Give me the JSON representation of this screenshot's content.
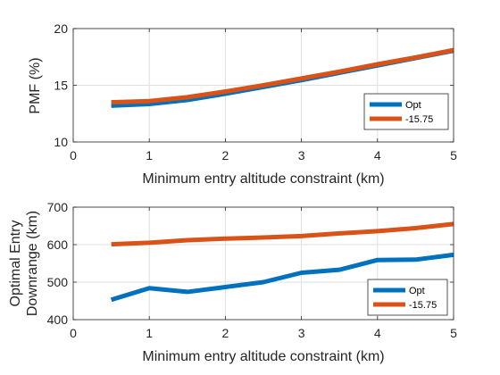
{
  "chart_data": [
    {
      "type": "line",
      "xlabel": "Minimum entry altitude constraint (km)",
      "ylabel": [
        "PMF (%)"
      ],
      "xlim": [
        0,
        5
      ],
      "ylim": [
        10,
        20
      ],
      "xticks": [
        "0",
        "1",
        "2",
        "3",
        "4",
        "5"
      ],
      "yticks": [
        "10",
        "15",
        "20"
      ],
      "grid": true,
      "legend_position": "lower-right",
      "x": [
        0.5,
        1,
        1.5,
        2,
        2.5,
        3,
        3.5,
        4,
        4.5,
        5
      ],
      "series": [
        {
          "name": "Opt",
          "color": "#0072BD",
          "values": [
            13.2,
            13.35,
            13.7,
            14.25,
            14.85,
            15.45,
            16.1,
            16.75,
            17.4,
            18.05
          ]
        },
        {
          "name": "-15.75",
          "color": "#D95319",
          "values": [
            13.5,
            13.6,
            13.95,
            14.45,
            15.0,
            15.6,
            16.2,
            16.85,
            17.45,
            18.1
          ]
        }
      ]
    },
    {
      "type": "line",
      "xlabel": "Minimum entry altitude constraint (km)",
      "ylabel": [
        "Optimal Entry",
        "Downrange (km)"
      ],
      "xlim": [
        0,
        5
      ],
      "ylim": [
        400,
        700
      ],
      "xticks": [
        "0",
        "1",
        "2",
        "3",
        "4",
        "5"
      ],
      "yticks": [
        "400",
        "500",
        "600",
        "700"
      ],
      "grid": true,
      "legend_position": "lower-right",
      "x": [
        0.5,
        1,
        1.5,
        2,
        2.5,
        3,
        3.5,
        4,
        4.5,
        5
      ],
      "series": [
        {
          "name": "Opt",
          "color": "#0072BD",
          "values": [
            453,
            484,
            474,
            487,
            500,
            525,
            533,
            559,
            560,
            573
          ]
        },
        {
          "name": "-15.75",
          "color": "#D95319",
          "values": [
            601,
            605,
            612,
            616,
            619,
            623,
            630,
            636,
            644,
            655
          ]
        }
      ]
    }
  ]
}
